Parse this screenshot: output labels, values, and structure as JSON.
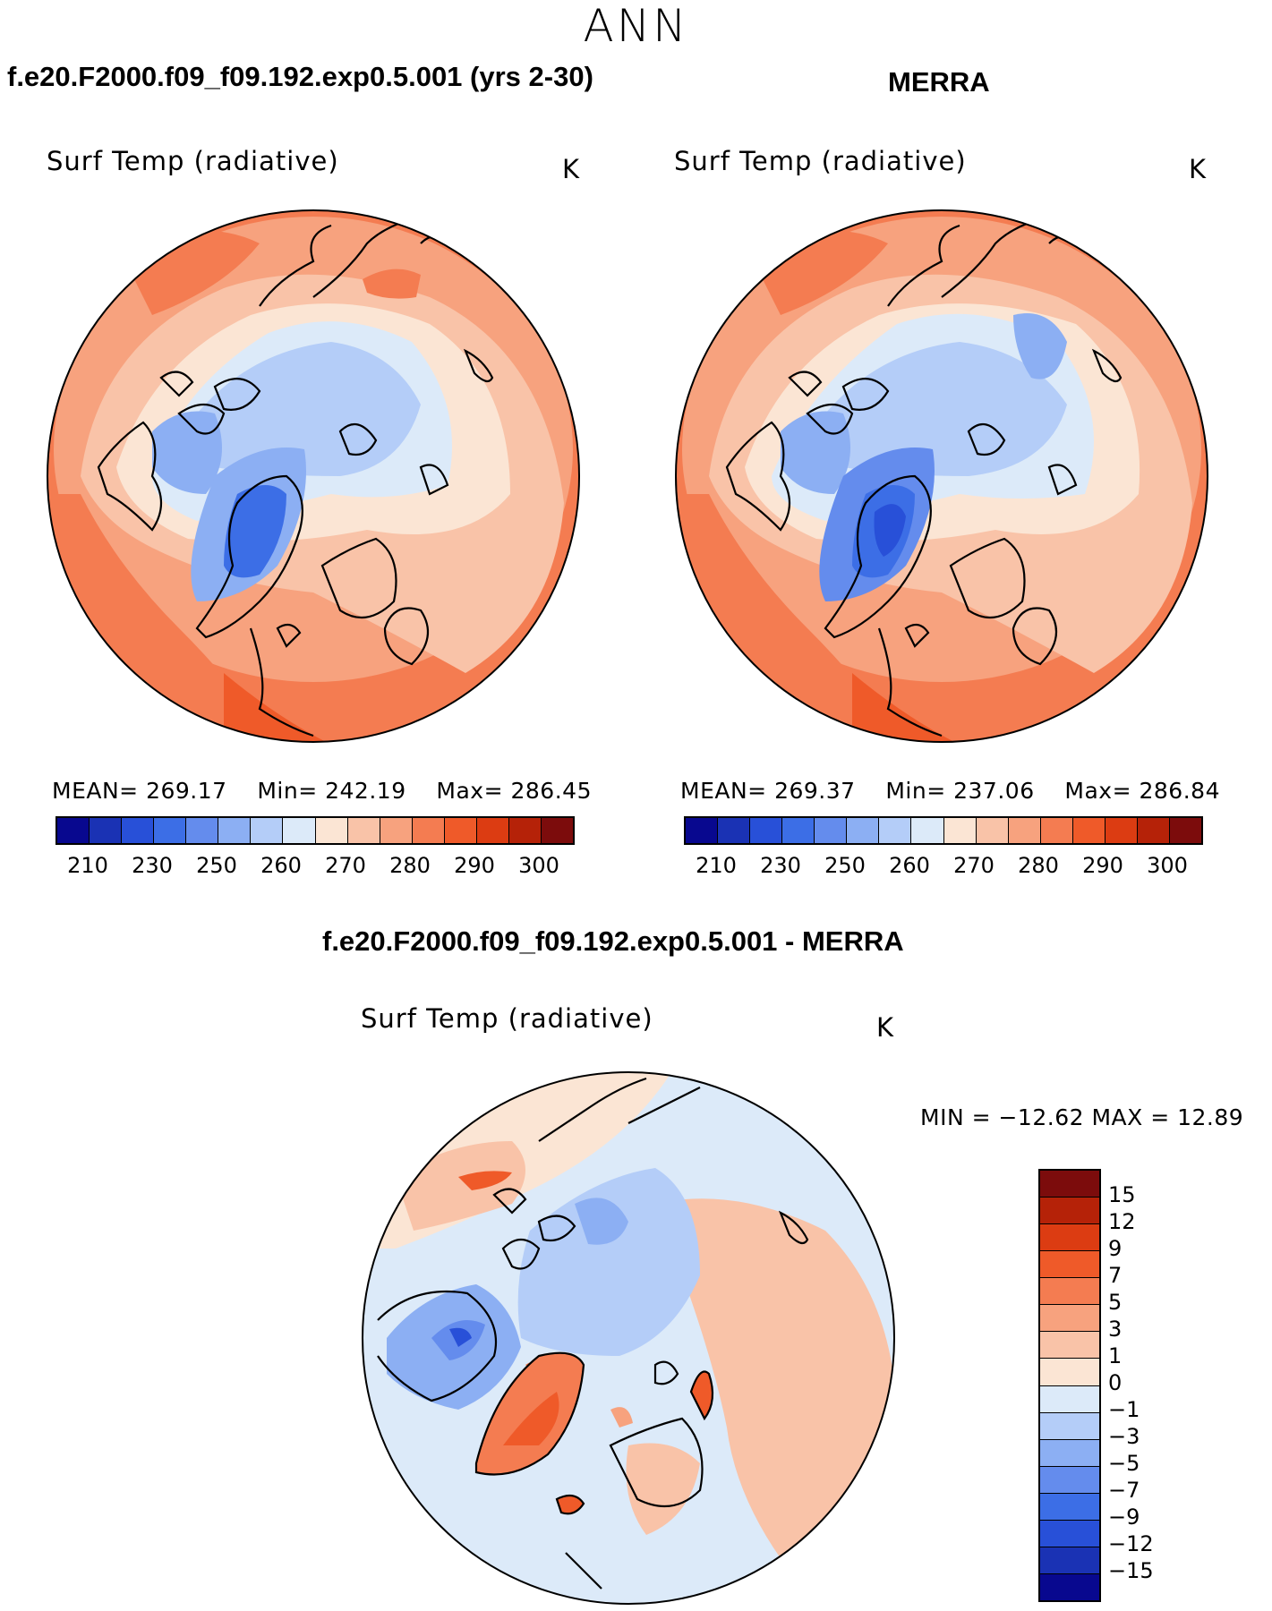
{
  "header": {
    "season": "ANN",
    "model_title": "f.e20.F2000.f09_f09.192.exp0.5.001 (yrs 2-30)",
    "obs_title": "MERRA",
    "diff_title": "f.e20.F2000.f09_f09.192.exp0.5.001 - MERRA"
  },
  "panels": {
    "model": {
      "variable": "Surf Temp (radiative)",
      "unit": "K",
      "mean_label": "MEAN=",
      "mean": "269.17",
      "min_label": "Min=",
      "min": "242.19",
      "max_label": "Max=",
      "max": "286.45"
    },
    "obs": {
      "variable": "Surf Temp (radiative)",
      "unit": "K",
      "mean_label": "MEAN=",
      "mean": "269.37",
      "min_label": "Min=",
      "min": "237.06",
      "max_label": "Max=",
      "max": "286.84"
    },
    "diff": {
      "variable": "Surf Temp (radiative)",
      "unit": "K",
      "minmax_text": "MIN = −12.62 MAX =   12.89"
    }
  },
  "abs_colorbar": {
    "colors": [
      "#08088f",
      "#1a32b4",
      "#2850d8",
      "#3c6ee6",
      "#648ced",
      "#8caff3",
      "#b4cdf8",
      "#dceaf9",
      "#fbe5d4",
      "#f9c3a8",
      "#f7a27e",
      "#f47c51",
      "#ef5a29",
      "#dc3c12",
      "#b52208",
      "#7c0c0c"
    ],
    "tick_labels": [
      "210",
      "230",
      "250",
      "260",
      "270",
      "280",
      "290",
      "300"
    ]
  },
  "diff_colorbar": {
    "colors": [
      "#7c0c0c",
      "#b52208",
      "#dc3c12",
      "#ef5a29",
      "#f47c51",
      "#f7a27e",
      "#f9c3a8",
      "#fbe5d4",
      "#dceaf9",
      "#b4cdf8",
      "#8caff3",
      "#648ced",
      "#3c6ee6",
      "#2850d8",
      "#1a32b4",
      "#08088f"
    ],
    "tick_labels": [
      "15",
      "12",
      "9",
      "7",
      "5",
      "3",
      "1",
      "0",
      "−1",
      "−3",
      "−5",
      "−7",
      "−9",
      "−12",
      "−15"
    ]
  }
}
